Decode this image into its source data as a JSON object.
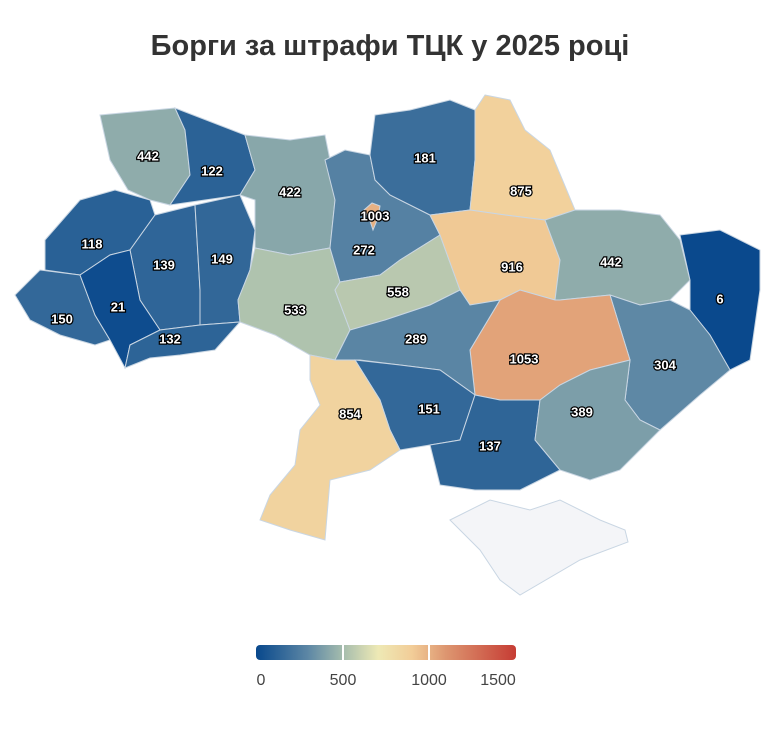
{
  "title": "Борги за штрафи ТЦК у 2025 році",
  "chart_data": {
    "type": "choropleth",
    "title": "Борги за штрафи ТЦК у 2025 році",
    "values": [
      442,
      122,
      118,
      139,
      149,
      150,
      21,
      132,
      422,
      533,
      272,
      1003,
      181,
      875,
      558,
      916,
      442,
      6,
      304,
      1053,
      289,
      151,
      854,
      137,
      389
    ],
    "no_data_color": "#f4f5f8",
    "color_scale": {
      "min": 0,
      "max": 1500,
      "stops": [
        [
          0,
          "#08488c"
        ],
        [
          300,
          "#5d87a5"
        ],
        [
          500,
          "#a3bbad"
        ],
        [
          700,
          "#eee9b5"
        ],
        [
          900,
          "#f2cd98"
        ],
        [
          1100,
          "#dd9670"
        ],
        [
          1500,
          "#c63c34"
        ]
      ]
    },
    "legend": {
      "ticks": [
        "0",
        "500",
        "1000",
        "1500"
      ],
      "placement": "bottom-center"
    }
  }
}
